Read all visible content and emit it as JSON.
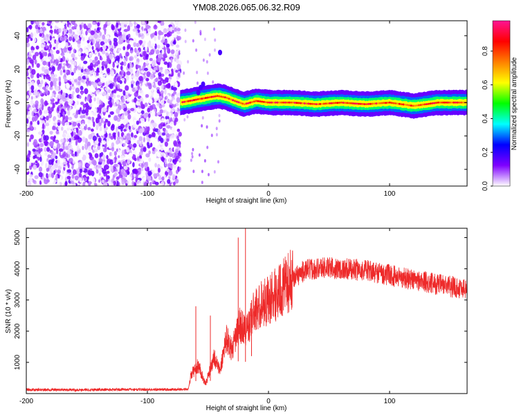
{
  "title": "YM08.2026.065.06.32.R09",
  "colors": {
    "frame": "#000000",
    "snr_line": "#ee2a2a",
    "background": "#ffffff"
  },
  "chart_data": [
    {
      "type": "heatmap",
      "name": "spectrogram",
      "xlabel": "Height of straight line (km)",
      "ylabel": "Frequency (Hz)",
      "xlim": [
        -200,
        164
      ],
      "ylim": [
        -50,
        49
      ],
      "xticks": [
        -200,
        -100,
        0,
        100
      ],
      "yticks": [
        -40,
        -20,
        0,
        20,
        40
      ],
      "grid": false,
      "description_points": {
        "noise_region_x": [
          -200,
          -73
        ],
        "signal_start_x": -73,
        "signal_center_freq": [
          [
            -73,
            0
          ],
          [
            -65,
            1
          ],
          [
            -58,
            2
          ],
          [
            -50,
            3
          ],
          [
            -42,
            4
          ],
          [
            -35,
            3
          ],
          [
            -28,
            1
          ],
          [
            -20,
            -1
          ],
          [
            -10,
            1
          ],
          [
            0,
            0
          ],
          [
            20,
            0
          ],
          [
            40,
            -1
          ],
          [
            60,
            0
          ],
          [
            80,
            -1
          ],
          [
            100,
            0
          ],
          [
            120,
            -2
          ],
          [
            140,
            0
          ],
          [
            164,
            0
          ]
        ]
      },
      "colorbar": {
        "label": "Normalized spectral amplitude",
        "ticks": [
          0.0,
          0.2,
          0.4,
          0.6,
          0.8
        ],
        "tick_labels": [
          "0.0",
          "0.2",
          "0.4",
          "0.6",
          "0.8"
        ],
        "range": [
          0.0,
          0.98
        ],
        "stops": [
          "#ffffff",
          "#7f00ff",
          "#0000ff",
          "#00ffff",
          "#00ff00",
          "#ffff00",
          "#ff8000",
          "#ff0000",
          "#ff1493"
        ]
      }
    },
    {
      "type": "line",
      "name": "snr",
      "xlabel": "Height of straight line (km)",
      "ylabel": "SNR (10 * v/v)",
      "xlim": [
        -200,
        164
      ],
      "ylim": [
        0,
        5300
      ],
      "xticks": [
        -200,
        -100,
        0,
        100
      ],
      "yticks": [
        1000,
        2000,
        3000,
        4000,
        5000
      ],
      "grid": false,
      "series": [
        {
          "name": "SNR",
          "envelope": [
            [
              -200,
              120
            ],
            [
              -160,
              120
            ],
            [
              -120,
              130
            ],
            [
              -80,
              130
            ],
            [
              -66,
              140
            ],
            [
              -64,
              600
            ],
            [
              -58,
              900
            ],
            [
              -52,
              300
            ],
            [
              -45,
              1200
            ],
            [
              -40,
              700
            ],
            [
              -35,
              1800
            ],
            [
              -30,
              1400
            ],
            [
              -24,
              2200
            ],
            [
              -18,
              2000
            ],
            [
              -12,
              2600
            ],
            [
              -5,
              2900
            ],
            [
              0,
              3000
            ],
            [
              10,
              3300
            ],
            [
              20,
              3700
            ],
            [
              30,
              3950
            ],
            [
              45,
              4050
            ],
            [
              60,
              4000
            ],
            [
              80,
              3950
            ],
            [
              100,
              3800
            ],
            [
              120,
              3650
            ],
            [
              140,
              3500
            ],
            [
              164,
              3350
            ]
          ],
          "spikes": [
            [
              -25,
              5000
            ],
            [
              -19,
              5300
            ],
            [
              -14,
              3000
            ],
            [
              -60,
              2800
            ],
            [
              -48,
              2500
            ]
          ]
        }
      ]
    }
  ]
}
